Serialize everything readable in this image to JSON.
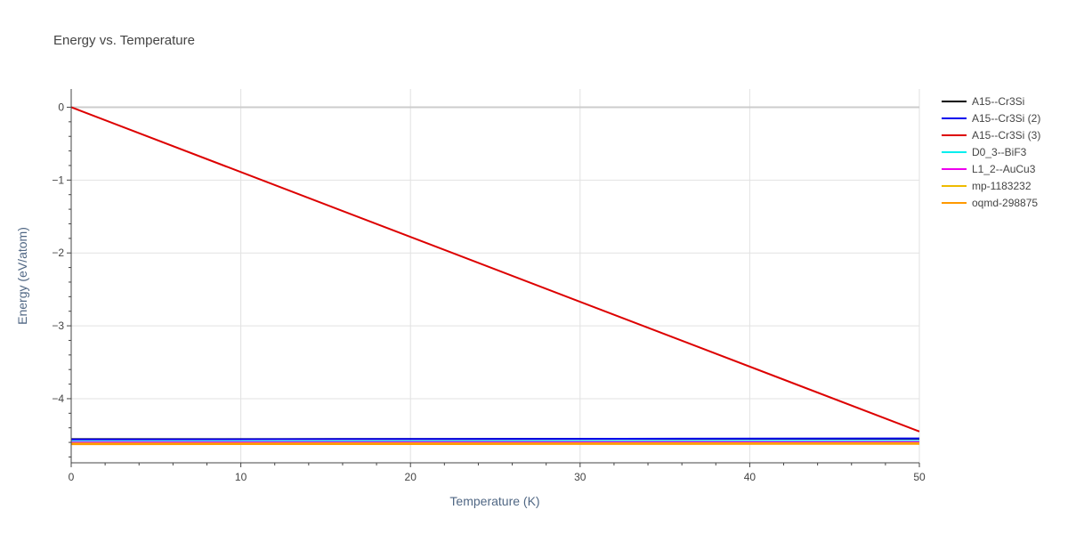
{
  "chart_data": {
    "type": "line",
    "title": "Energy vs. Temperature",
    "xlabel": "Temperature (K)",
    "ylabel": "Energy (eV/atom)",
    "xlim": [
      0,
      50
    ],
    "ylim": [
      -4.88,
      0.25
    ],
    "xticks": [
      0,
      10,
      20,
      30,
      40,
      50
    ],
    "xtick_labels": [
      "0",
      "10",
      "20",
      "30",
      "40",
      "50"
    ],
    "yticks": [
      0,
      -1,
      -2,
      -3,
      -4
    ],
    "ytick_labels": [
      "0",
      "−1",
      "−2",
      "−3",
      "−4"
    ],
    "grid": true,
    "legend_position": "top-right",
    "series": [
      {
        "name": "A15--Cr3Si",
        "color": "#000000",
        "x": [
          0,
          50
        ],
        "y": [
          -4.555,
          -4.55
        ]
      },
      {
        "name": "A15--Cr3Si (2)",
        "color": "#0000ee",
        "x": [
          0,
          50
        ],
        "y": [
          -4.56,
          -4.545
        ]
      },
      {
        "name": "A15--Cr3Si (3)",
        "color": "#dd0000",
        "x": [
          0,
          50
        ],
        "y": [
          0,
          -4.45
        ]
      },
      {
        "name": "D0_3--BiF3",
        "color": "#00eeee",
        "x": [
          0,
          50
        ],
        "y": [
          -4.59,
          -4.58
        ]
      },
      {
        "name": "L1_2--AuCu3",
        "color": "#ee00ee",
        "x": [
          0,
          50
        ],
        "y": [
          -4.6,
          -4.595
        ]
      },
      {
        "name": "mp-1183232",
        "color": "#eebb00",
        "x": [
          0,
          50
        ],
        "y": [
          -4.615,
          -4.61
        ]
      },
      {
        "name": "oqmd-298875",
        "color": "#ff9900",
        "x": [
          0,
          50
        ],
        "y": [
          -4.625,
          -4.62
        ]
      }
    ]
  }
}
